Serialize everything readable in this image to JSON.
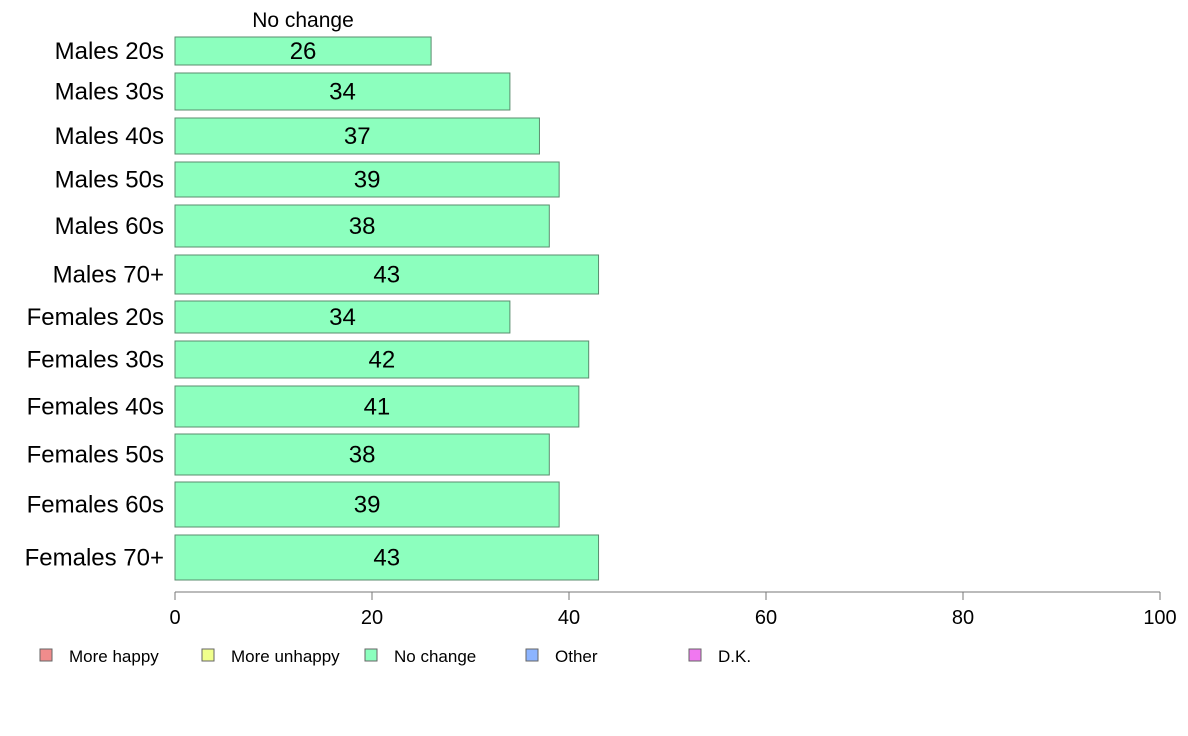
{
  "chart_data": {
    "type": "bar",
    "orientation": "horizontal",
    "series_title": "No change",
    "categories": [
      "Males 20s",
      "Males 30s",
      "Males 40s",
      "Males 50s",
      "Males 60s",
      "Males 70+",
      "Females 20s",
      "Females 30s",
      "Females 40s",
      "Females 50s",
      "Females 60s",
      "Females 70+"
    ],
    "series": [
      {
        "name": "No change",
        "color": "#8cffbe",
        "values": [
          26,
          34,
          37,
          39,
          38,
          43,
          34,
          42,
          41,
          38,
          39,
          43
        ]
      }
    ],
    "xlim": [
      0,
      100
    ],
    "xticks": [
      0,
      20,
      40,
      60,
      80,
      100
    ],
    "grid": false,
    "legend_position": "bottom",
    "legend": [
      {
        "label": "More happy",
        "color": "#f08c8c"
      },
      {
        "label": "More unhappy",
        "color": "#f0ff8c"
      },
      {
        "label": "No change",
        "color": "#8cffbe"
      },
      {
        "label": "Other",
        "color": "#8cb4ff"
      },
      {
        "label": "D.K.",
        "color": "#f078f0"
      }
    ]
  }
}
